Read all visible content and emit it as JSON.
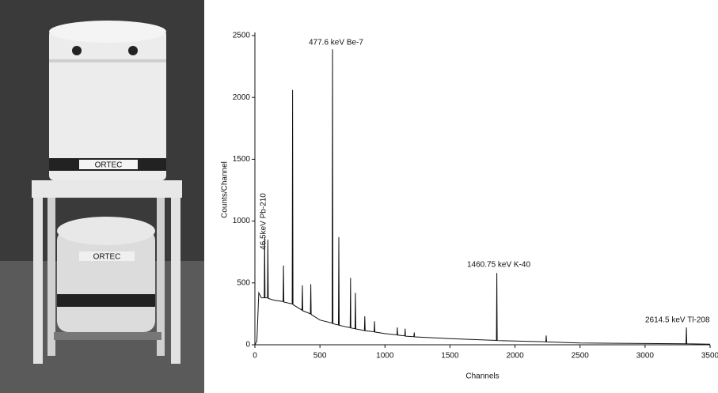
{
  "photo": {
    "labels": [
      "ORTEC",
      "ORTEC"
    ]
  },
  "chart_data": {
    "type": "line",
    "xlabel": "Channels",
    "ylabel": "Counts/Channel",
    "x": [
      0,
      15,
      30,
      50,
      72,
      75,
      78,
      97,
      100,
      103,
      150,
      217,
      220,
      223,
      287,
      290,
      293,
      362,
      365,
      368,
      427,
      430,
      433,
      500,
      594,
      597,
      600,
      642,
      645,
      648,
      700,
      732,
      735,
      738,
      770,
      773,
      776,
      842,
      845,
      848,
      917,
      920,
      923,
      1000,
      1092,
      1095,
      1098,
      1152,
      1155,
      1158,
      1222,
      1225,
      1228,
      1500,
      1857,
      1860,
      1863,
      2000,
      2237,
      2240,
      2243,
      2500,
      3000,
      3315,
      3318,
      3321,
      3500
    ],
    "values": [
      0,
      30,
      420,
      380,
      380,
      870,
      380,
      380,
      850,
      375,
      360,
      350,
      640,
      345,
      330,
      2060,
      325,
      280,
      480,
      275,
      250,
      490,
      245,
      200,
      175,
      2390,
      170,
      160,
      870,
      158,
      145,
      138,
      540,
      136,
      130,
      420,
      128,
      115,
      230,
      113,
      105,
      190,
      103,
      90,
      80,
      140,
      78,
      72,
      130,
      70,
      66,
      100,
      64,
      50,
      35,
      580,
      34,
      30,
      24,
      75,
      23,
      15,
      10,
      8,
      140,
      8,
      5
    ],
    "color": "#111111",
    "xlim": [
      0,
      3500
    ],
    "xticks": [
      0,
      500,
      1000,
      1500,
      2000,
      2500,
      3000,
      3500
    ],
    "ylim": [
      0,
      2500
    ],
    "yticks": [
      0,
      500,
      1000,
      1500,
      2000,
      2500
    ],
    "annotations": [
      "477.6 keV Be-7",
      "46.5keV Pb-210",
      "1460.75 keV K-40",
      "2614.5 keV Tl-208"
    ]
  }
}
